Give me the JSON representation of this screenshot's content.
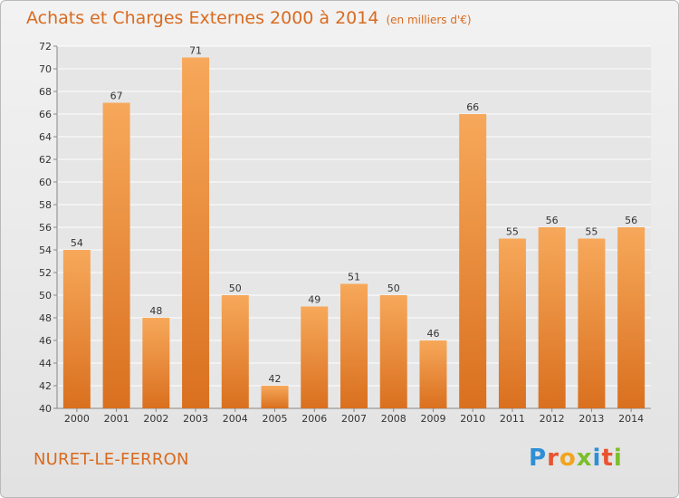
{
  "header": {
    "title": "Achats et Charges Externes 2000 à 2014",
    "unit": "(en milliers d'€)"
  },
  "footer": {
    "place": "NURET-LE-FERRON",
    "brand": "Proxiti"
  },
  "colors": {
    "bar_top": "#f7a85a",
    "bar_bottom": "#d9701f",
    "accent": "#d96b1f",
    "grid": "#ffffff"
  },
  "chart_data": {
    "type": "bar",
    "categories": [
      "2000",
      "2001",
      "2002",
      "2003",
      "2004",
      "2005",
      "2006",
      "2007",
      "2008",
      "2009",
      "2010",
      "2011",
      "2012",
      "2013",
      "2014"
    ],
    "values": [
      54,
      67,
      48,
      71,
      50,
      42,
      49,
      51,
      50,
      46,
      66,
      55,
      56,
      55,
      56
    ],
    "title": "Achats et Charges Externes 2000 à 2014",
    "ylim": [
      40,
      72
    ],
    "yticks": [
      40,
      42,
      44,
      46,
      48,
      50,
      52,
      54,
      56,
      58,
      60,
      62,
      64,
      66,
      68,
      70,
      72
    ],
    "grid": true
  }
}
